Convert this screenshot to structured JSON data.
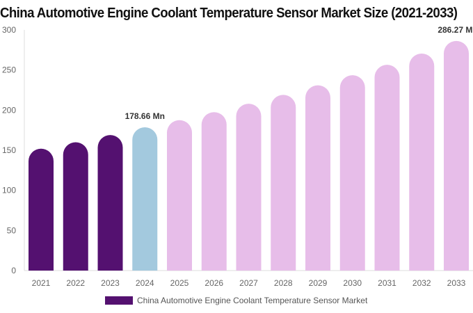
{
  "chart_data": {
    "type": "bar",
    "title": "China Automotive Engine Coolant Temperature Sensor Market Size (2021-2033)",
    "categories": [
      "2021",
      "2022",
      "2023",
      "2024",
      "2025",
      "2026",
      "2027",
      "2028",
      "2029",
      "2030",
      "2031",
      "2032",
      "2033"
    ],
    "series": [
      {
        "name": "China Automotive Engine Coolant Temperature Sensor Market",
        "values": [
          152,
          160,
          169,
          178.66,
          187.5,
          197.5,
          208,
          219,
          231,
          243.5,
          256.5,
          270.5,
          286.27
        ]
      }
    ],
    "data_labels": {
      "3": "178.66 Mn",
      "12": "286.27 Mn"
    },
    "yticks": [
      0,
      50,
      100,
      150,
      200,
      250,
      300
    ],
    "ylim": [
      0,
      300
    ],
    "grid": false,
    "legend_position": "bottom",
    "colors": {
      "historical": "#541170",
      "current": "#a3c9de",
      "forecast": "#e7bde9"
    }
  }
}
